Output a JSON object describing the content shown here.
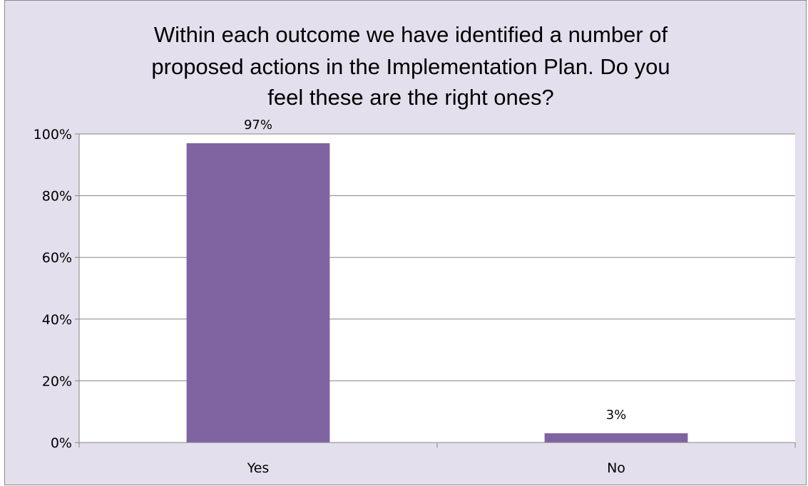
{
  "chart_data": {
    "type": "bar",
    "title_lines": [
      "Within each outcome we have identified a number of",
      "proposed actions in the Implementation Plan. Do you",
      "feel these are the right ones?"
    ],
    "categories": [
      "Yes",
      "No"
    ],
    "values": [
      97,
      3
    ],
    "data_labels": [
      "97%",
      "3%"
    ],
    "y_ticks": [
      "0%",
      "20%",
      "40%",
      "60%",
      "80%",
      "100%"
    ],
    "ylim": [
      0,
      100
    ],
    "grid": true,
    "legend": "none",
    "colors": {
      "bar": "#8064a2",
      "plot_background": "#ffffff",
      "chart_background": "#e4dfec",
      "gridline": "#868686"
    }
  }
}
